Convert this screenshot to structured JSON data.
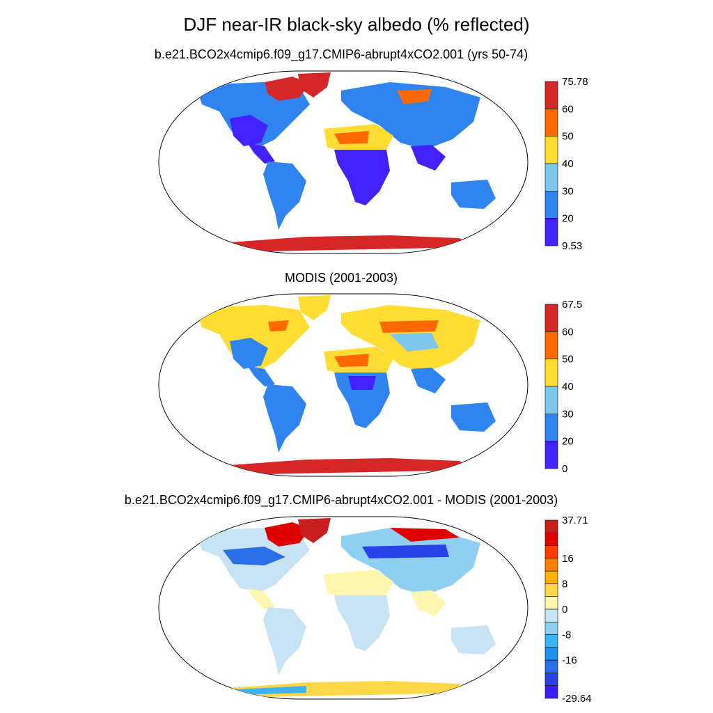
{
  "title": "DJF near-IR black-sky albedo (% reflected)",
  "panels": [
    {
      "id": "model",
      "title": "b.e21.BCO2x4cmip6.f09_g17.CMIP6-abrupt4xCO2.001 (yrs 50-74)",
      "colorbar": {
        "labels": [
          "75.78",
          "60",
          "50",
          "40",
          "30",
          "20",
          "9.53"
        ],
        "colors": [
          "#d62728",
          "#ff6a00",
          "#ffdd33",
          "#7ec8ee",
          "#2f84f0",
          "#4422ff"
        ]
      }
    },
    {
      "id": "obs",
      "title": "MODIS (2001-2003)",
      "colorbar": {
        "labels": [
          "67.5",
          "60",
          "50",
          "40",
          "30",
          "20",
          "0"
        ],
        "colors": [
          "#d62728",
          "#ff6a00",
          "#ffdd33",
          "#7ec8ee",
          "#2f84f0",
          "#4422ff"
        ]
      }
    },
    {
      "id": "diff",
      "title": "b.e21.BCO2x4cmip6.f09_g17.CMIP6-abrupt4xCO2.001 - MODIS (2001-2003)",
      "colorbar": {
        "labels": [
          "37.71",
          "16",
          "8",
          "0",
          "-8",
          "-16",
          "-29.64"
        ],
        "colors": [
          "#c81e1e",
          "#e00000",
          "#ff3c00",
          "#ff8000",
          "#ffb000",
          "#ffd84a",
          "#fff6b0",
          "#c8e4f4",
          "#8fd0f2",
          "#3cb4f4",
          "#1e90f0",
          "#2a6ee8",
          "#2a40e8",
          "#3a1eff"
        ]
      }
    }
  ]
}
